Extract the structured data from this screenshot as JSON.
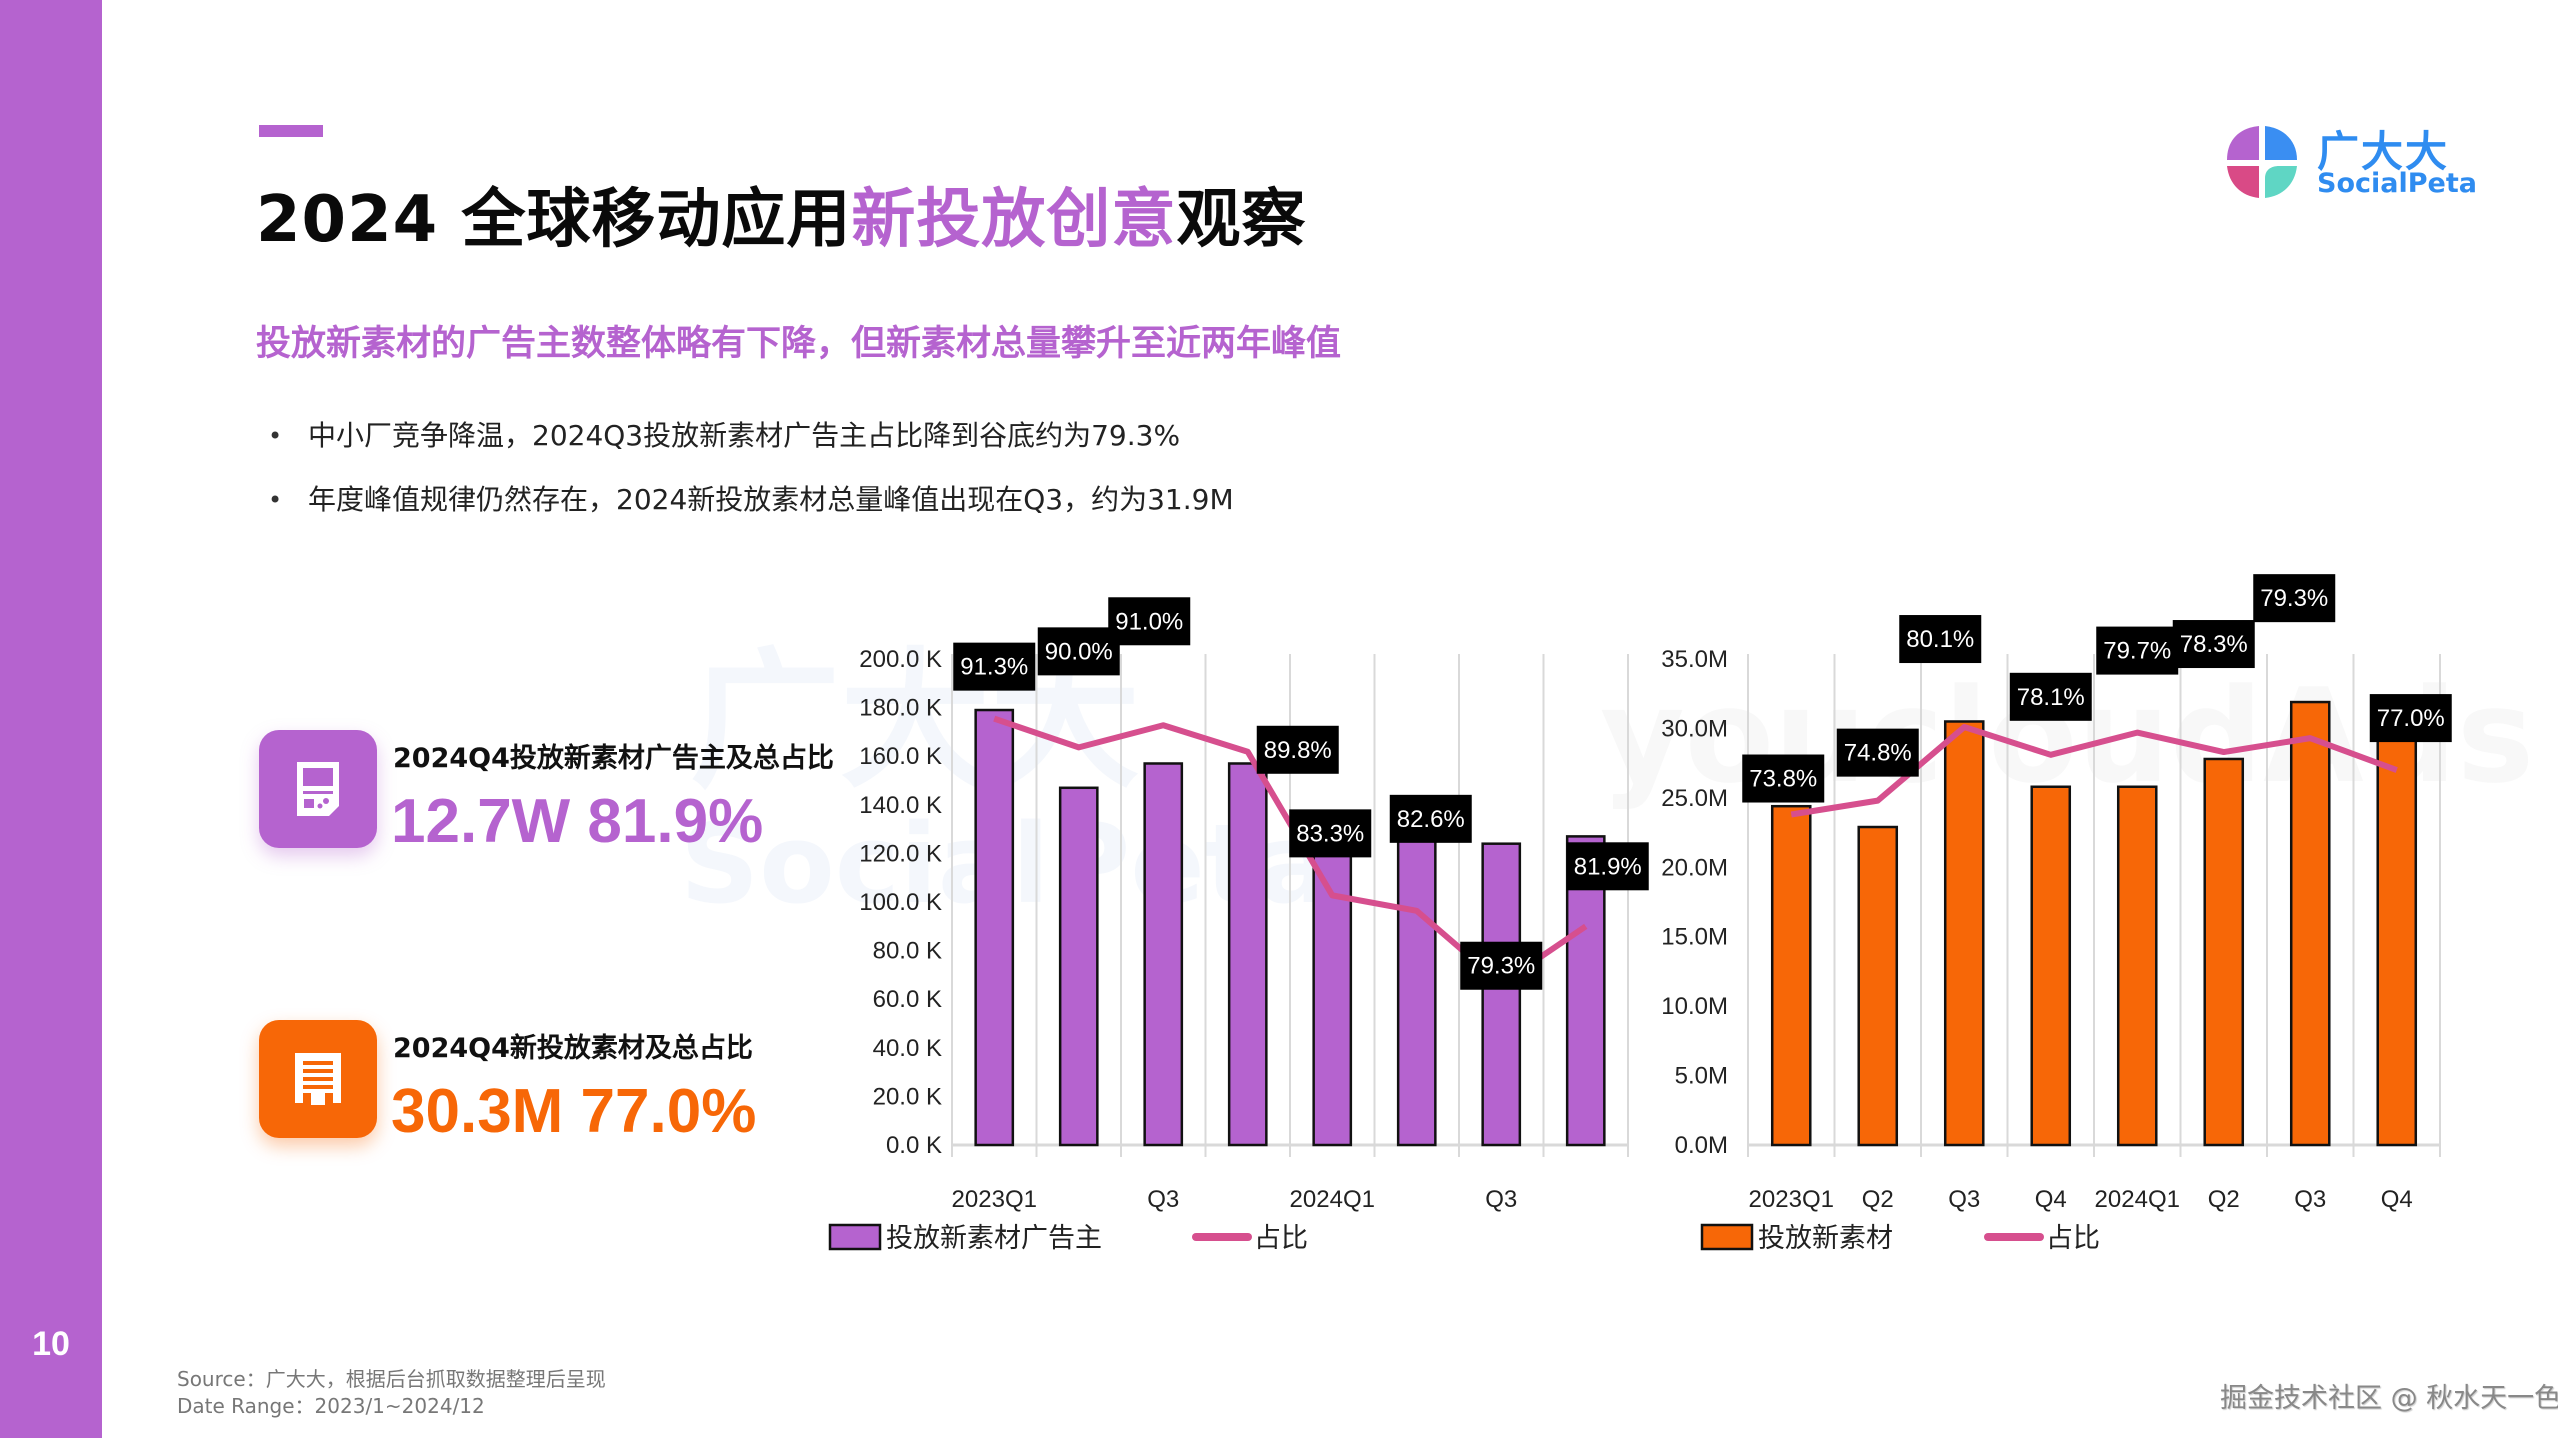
{
  "page_number": "10",
  "title": {
    "prefix": "2024 全球移动应用",
    "highlight": "新投放创意",
    "suffix": "观察"
  },
  "subtitle": "投放新素材的广告主数整体略有下降，但新素材总量攀升至近两年峰值",
  "bullets": [
    "中小厂竞争降温，2024Q3投放新素材广告主占比降到谷底约为79.3%",
    "年度峰值规律仍然存在，2024新投放素材总量峰值出现在Q3，约为31.9M"
  ],
  "logo": {
    "cn": "广大大",
    "en": "SocialPeta",
    "icon": "socialpeta-logo-icon"
  },
  "watermarks": [
    "广大大",
    "SocialPeta",
    "youcloudAds"
  ],
  "kpis": [
    {
      "icon": "game-device-icon",
      "title": "2024Q4投放新素材广告主及总占比",
      "value": "12.7W 81.9%",
      "color": "#b563cf"
    },
    {
      "icon": "receipt-document-icon",
      "title": "2024Q4新投放素材及总占比",
      "value": "30.3M 77.0%",
      "color": "#f76707"
    }
  ],
  "chart_data": [
    {
      "type": "bar",
      "title": "",
      "categories": [
        "2023Q1",
        "Q2",
        "Q3",
        "Q4",
        "2024Q1",
        "Q2",
        "Q3",
        "Q4"
      ],
      "x_tick_labels": [
        "2023Q1",
        "",
        "Q3",
        "",
        "2024Q1",
        "",
        "Q3",
        ""
      ],
      "y_ticks": [
        "0.0 K",
        "20.0 K",
        "40.0 K",
        "60.0 K",
        "80.0 K",
        "100.0 K",
        "120.0 K",
        "140.0 K",
        "160.0 K",
        "180.0 K",
        "200.0 K"
      ],
      "ylim": [
        0,
        200
      ],
      "y_unit": "K",
      "grid": "vertical",
      "legend_position": "bottom",
      "series": [
        {
          "name": "投放新素材广告主",
          "kind": "bar",
          "color": "#b563cf",
          "values": [
            179,
            147,
            157,
            157,
            130,
            133,
            124,
            127
          ]
        },
        {
          "name": "占比",
          "kind": "line",
          "axis": "secondary",
          "color": "#d64f8e",
          "values": [
            91.3,
            90.0,
            91.0,
            89.8,
            83.3,
            82.6,
            79.3,
            81.9
          ],
          "labels": [
            "91.3%",
            "90.0%",
            "91.0%",
            "89.8%",
            "83.3%",
            "82.6%",
            "79.3%",
            "81.9%"
          ],
          "secondary_ylim": [
            72,
            94
          ]
        }
      ]
    },
    {
      "type": "bar",
      "title": "",
      "categories": [
        "2023Q1",
        "Q2",
        "Q3",
        "Q4",
        "2024Q1",
        "Q2",
        "Q3",
        "Q4"
      ],
      "x_tick_labels": [
        "2023Q1",
        "Q2",
        "Q3",
        "Q4",
        "2024Q1",
        "Q2",
        "Q3",
        "Q4"
      ],
      "y_ticks": [
        "0.0M",
        "5.0M",
        "10.0M",
        "15.0M",
        "20.0M",
        "25.0M",
        "30.0M",
        "35.0M"
      ],
      "ylim": [
        0,
        35
      ],
      "y_unit": "M",
      "grid": "vertical",
      "legend_position": "bottom",
      "series": [
        {
          "name": "投放新素材",
          "kind": "bar",
          "color": "#f76707",
          "values": [
            24.4,
            22.9,
            30.5,
            25.8,
            25.8,
            27.8,
            31.9,
            30.3
          ]
        },
        {
          "name": "占比",
          "kind": "line",
          "axis": "secondary",
          "color": "#d64f8e",
          "values": [
            73.8,
            74.8,
            80.1,
            78.1,
            79.7,
            78.3,
            79.3,
            77.0
          ],
          "labels": [
            "73.8%",
            "74.8%",
            "80.1%",
            "78.1%",
            "79.7%",
            "78.3%",
            "79.3%",
            "77.0%"
          ],
          "secondary_ylim": [
            50,
            85
          ]
        }
      ]
    }
  ],
  "footer": {
    "source": "Source：广大大，根据后台抓取数据整理后呈现",
    "date_range": "Date Range：2023/1~2024/12",
    "community_watermark": "掘金技术社区 @ 秋水天一色"
  }
}
